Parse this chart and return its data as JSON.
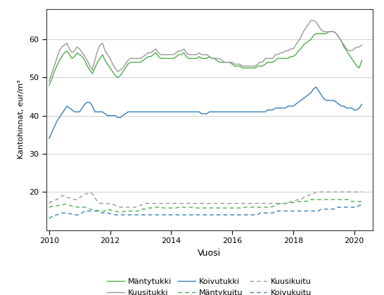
{
  "xlabel": "Vuosi",
  "ylabel": "Kantohinnat, eur/m³",
  "xlim": [
    2009.9,
    2020.6
  ],
  "ylim": [
    10,
    68
  ],
  "yticks": [
    20,
    30,
    40,
    50,
    60
  ],
  "xticks": [
    2010,
    2012,
    2014,
    2016,
    2018,
    2020
  ],
  "colors": {
    "mantytukki": "#4daf4a",
    "kuusitukki": "#999999",
    "koivutukki": "#377eb8",
    "mantykuitu": "#4daf4a",
    "kuusikuitu": "#999999",
    "koivukuitu": "#377eb8"
  },
  "legend": {
    "mantytukki": "Mäntytukki",
    "kuusitukki": "Kuusitukki",
    "koivutukki": "Koivutukki",
    "mantykuitu": "Mäntykuitu",
    "kuusikuitu": "Kuusikuitu",
    "koivukuitu": "Koivukuitu"
  }
}
